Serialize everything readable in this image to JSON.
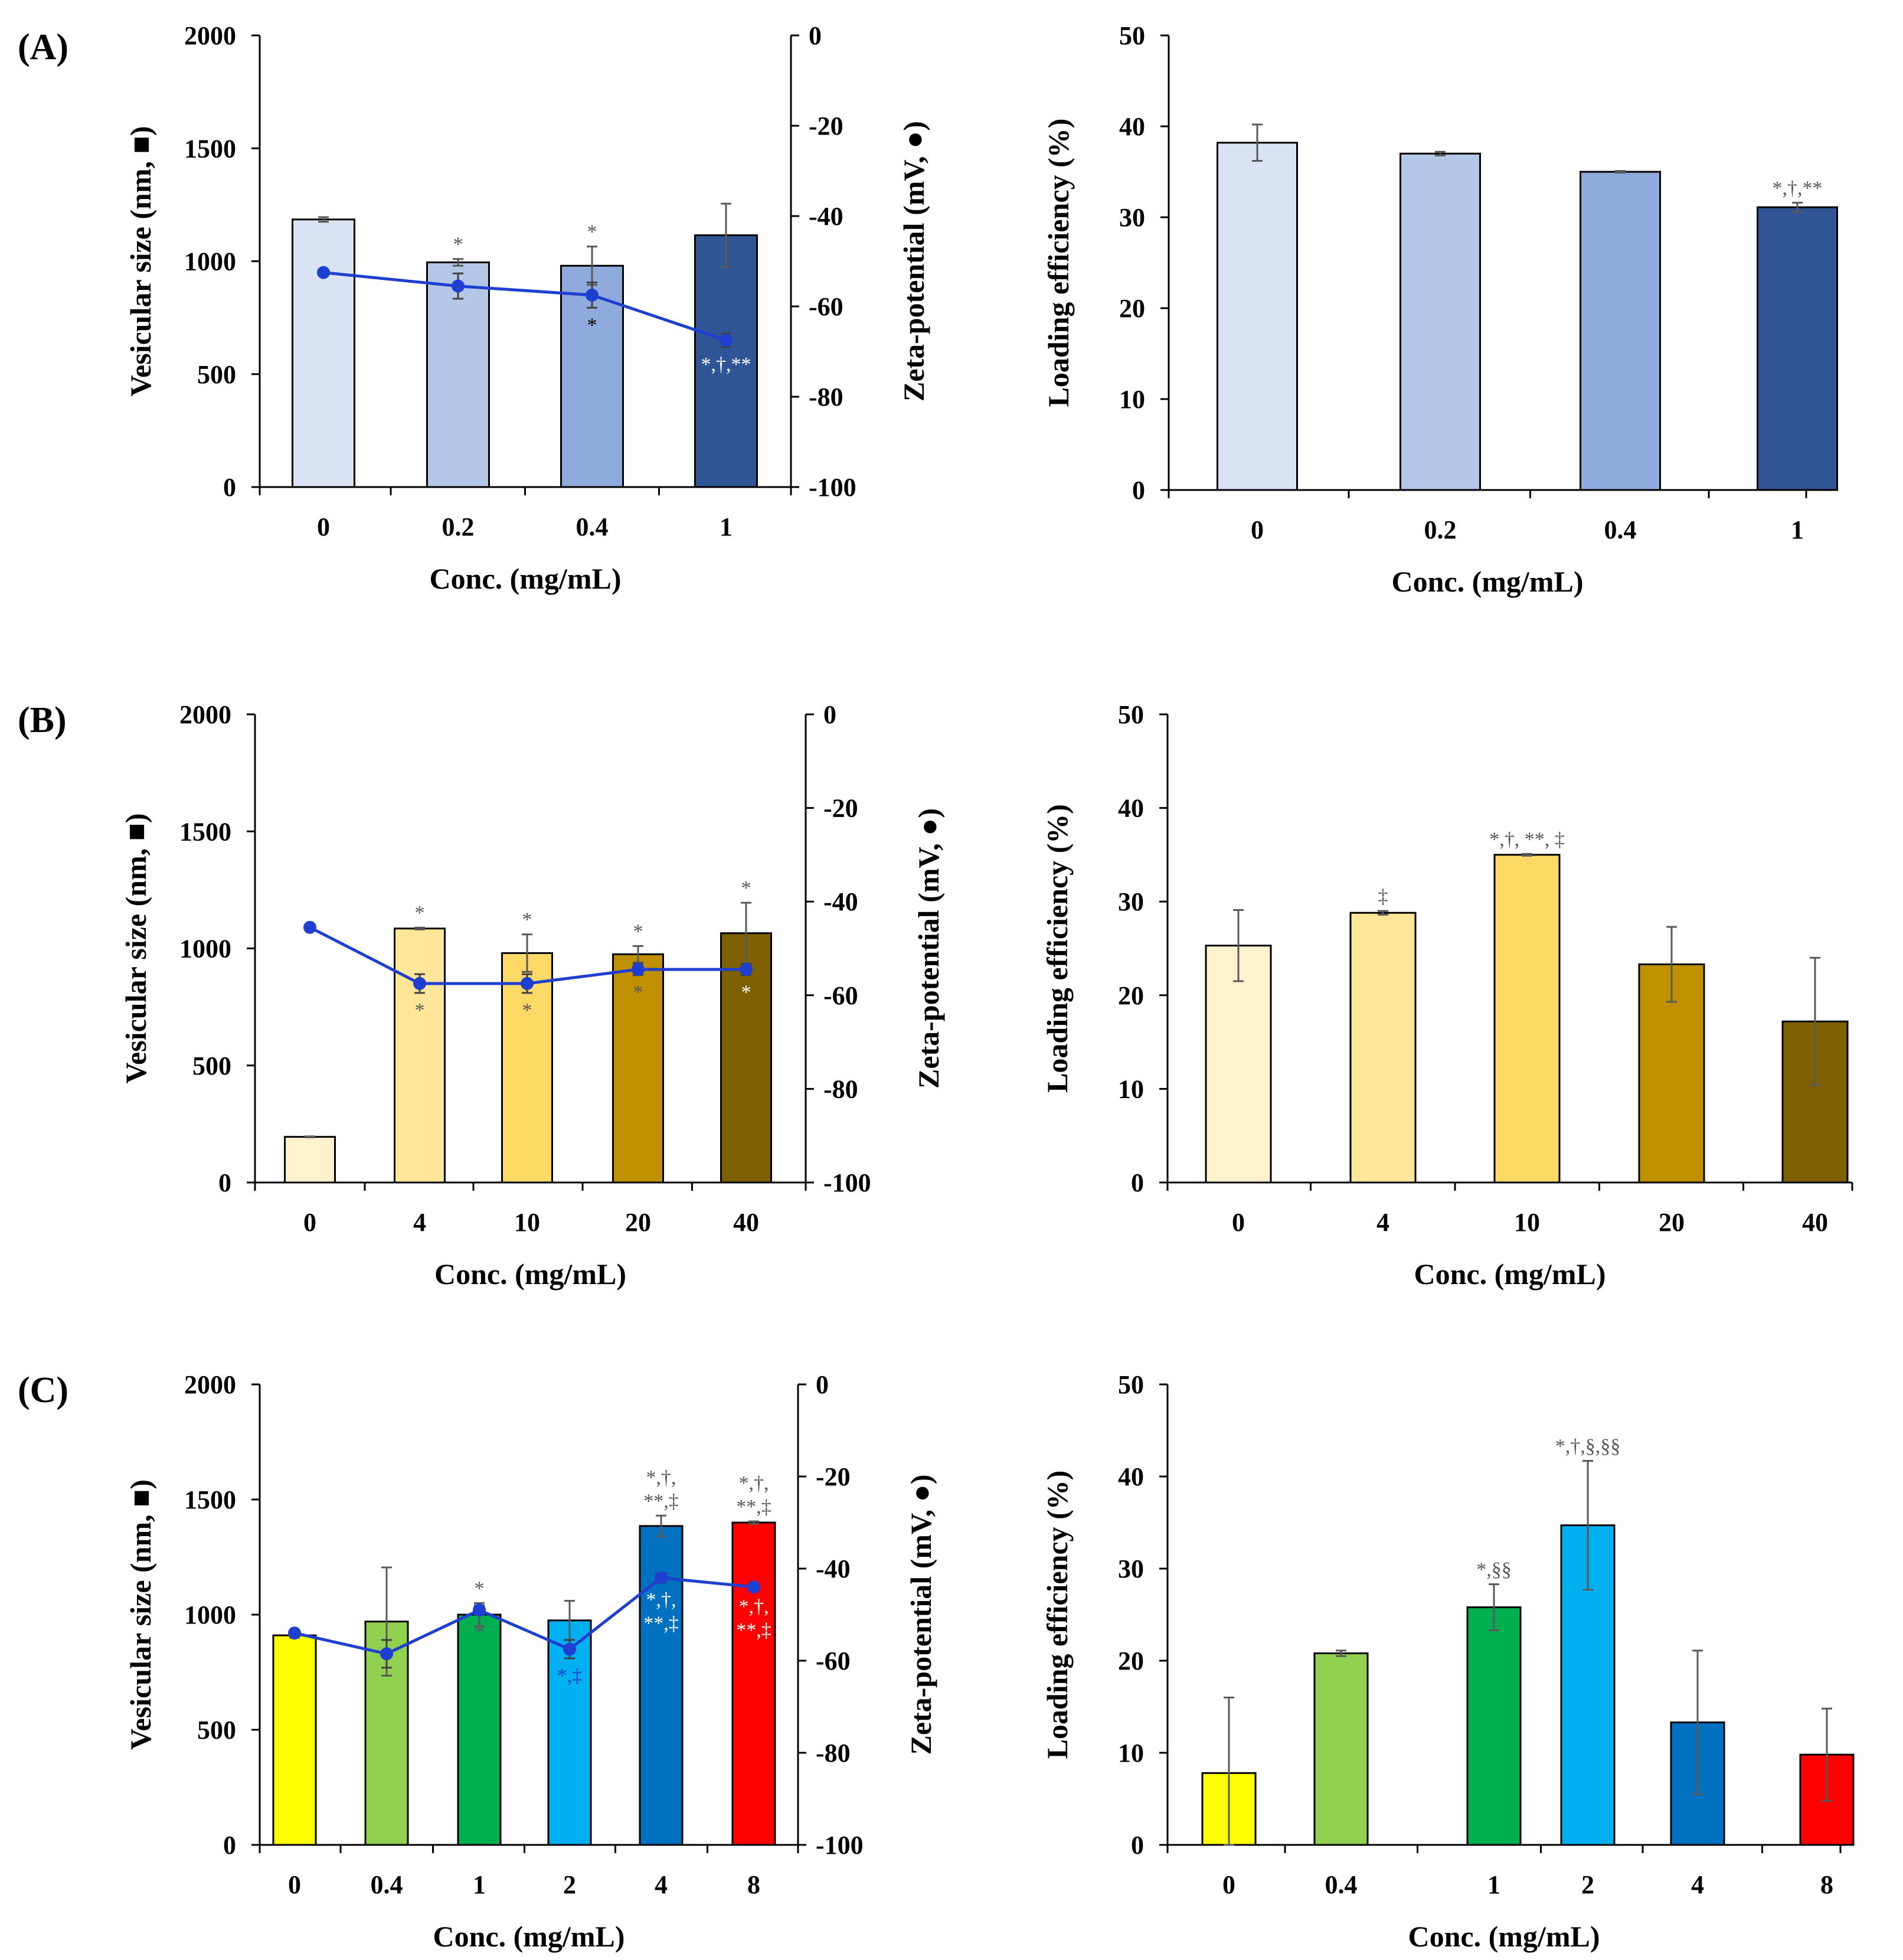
{
  "chart_data": [
    {
      "panel": "(A)",
      "type": "bar+line",
      "xlabel": "Conc. (mg/mL)",
      "ylabel": "Vesicular size (nm, ■)",
      "y2label": "Zeta-potential (mV, ●)",
      "ylim": [
        0,
        2000
      ],
      "yticks": [
        "0",
        "500",
        "1000",
        "1500",
        "2000"
      ],
      "y2lim": [
        -100,
        0
      ],
      "y2ticks": [
        "0",
        "-20",
        "-40",
        "-60",
        "-80",
        "-100"
      ],
      "categories": [
        "0",
        "0.2",
        "0.4",
        "1"
      ],
      "colors": [
        "#dae3f3",
        "#b4c7e7",
        "#8faadc",
        "#2f5597"
      ],
      "size_values": [
        1185,
        995,
        980,
        1115
      ],
      "size_errors": [
        10,
        15,
        85,
        140
      ],
      "size_annotations": [
        "",
        "*",
        "*",
        ""
      ],
      "size_annotation_color": "#595959",
      "zeta_values": [
        -52.5,
        -55.5,
        -57.5,
        -67.5
      ],
      "zeta_errors": [
        0.5,
        2.8,
        2.8,
        1.5
      ],
      "zeta_annotations": [
        "",
        "",
        "*",
        "*,†,**"
      ],
      "zeta_annotation_colors": [
        "#000000",
        "#000000",
        "#000000",
        "#ffffff"
      ],
      "line_color": "#1f3fd0"
    },
    {
      "panel": "(A)",
      "type": "bar",
      "xlabel": "Conc. (mg/mL)",
      "ylabel": "Loading efficiency  (%)",
      "ylim": [
        0,
        50
      ],
      "yticks": [
        "0",
        "10",
        "20",
        "30",
        "40",
        "50"
      ],
      "categories": [
        "0",
        "0.2",
        "0.4",
        "1"
      ],
      "colors": [
        "#dae3f3",
        "#b4c7e7",
        "#8faadc",
        "#2f5597"
      ],
      "values": [
        38.2,
        37.0,
        35.0,
        31.1
      ],
      "errors": [
        2.0,
        0.2,
        0.1,
        0.5
      ],
      "annotations": [
        "",
        "",
        "",
        "*,†,**"
      ],
      "annotation_color": "#595959"
    },
    {
      "panel": "(B)",
      "type": "bar+line",
      "xlabel": "Conc. (mg/mL)",
      "ylabel": "Vesicular size (nm, ■)",
      "y2label": "Zeta-potential (mV, ●)",
      "ylim": [
        0,
        2000
      ],
      "yticks": [
        "0",
        "500",
        "1000",
        "1500",
        "2000"
      ],
      "y2lim": [
        -100,
        0
      ],
      "y2ticks": [
        "0",
        "-20",
        "-40",
        "-60",
        "-80",
        "-100"
      ],
      "categories": [
        "0",
        "4",
        "10",
        "20",
        "40"
      ],
      "colors": [
        "#fff2cc",
        "#ffe699",
        "#ffd966",
        "#bf9000",
        "#7f6000"
      ],
      "size_values": [
        195,
        1085,
        980,
        975,
        1065
      ],
      "size_errors": [
        2,
        4,
        80,
        35,
        130
      ],
      "size_annotations": [
        "",
        "*",
        "*",
        "*",
        "*"
      ],
      "size_annotation_color": "#595959",
      "zeta_values": [
        -45.5,
        -57.5,
        -57.5,
        -54.5,
        -54.5
      ],
      "zeta_errors": [
        0.3,
        2.0,
        2.0,
        1.2,
        1.2
      ],
      "zeta_annotations": [
        "",
        "*",
        "*",
        "*",
        "*"
      ],
      "zeta_annotation_colors": [
        "#ffffff",
        "#595959",
        "#595959",
        "#595959",
        "#ffffff"
      ],
      "line_color": "#1f3fd0"
    },
    {
      "panel": "(B)",
      "type": "bar",
      "xlabel": "Conc. (mg/mL)",
      "ylabel": "Loading efficiency  (%)",
      "ylim": [
        0,
        50
      ],
      "yticks": [
        "0",
        "10",
        "20",
        "30",
        "40",
        "50"
      ],
      "categories": [
        "0",
        "4",
        "10",
        "20",
        "40"
      ],
      "colors": [
        "#fff2cc",
        "#ffe699",
        "#ffd966",
        "#bf9000",
        "#7f6000"
      ],
      "values": [
        25.3,
        28.8,
        35.0,
        23.3,
        17.2
      ],
      "errors": [
        3.8,
        0.2,
        0.1,
        4.0,
        6.8
      ],
      "annotations": [
        "",
        "‡",
        "*,†, **, ‡",
        "",
        ""
      ],
      "annotation_color": "#595959"
    },
    {
      "panel": "(C)",
      "type": "bar+line",
      "xlabel": "Conc. (mg/mL)",
      "ylabel": "Vesicular size (nm, ■)",
      "y2label": "Zeta-potential (mV, ●)",
      "ylim": [
        0,
        2000
      ],
      "yticks": [
        "0",
        "500",
        "1000",
        "1500",
        "2000"
      ],
      "y2lim": [
        -100,
        0
      ],
      "y2ticks": [
        "0",
        "-20",
        "-40",
        "-60",
        "-80",
        "-100"
      ],
      "categories": [
        "0",
        "0.4",
        "1",
        "2",
        "4",
        "8"
      ],
      "colors": [
        "#ffff00",
        "#92d050",
        "#00b050",
        "#00b0f0",
        "#0070c0",
        "#ff0000"
      ],
      "size_values": [
        910,
        970,
        1000,
        975,
        1385,
        1400
      ],
      "size_errors": [
        10,
        235,
        50,
        85,
        45,
        5
      ],
      "size_annotations": [
        "",
        "",
        "*",
        "",
        "*,†,|**,‡",
        "*,†,|**,‡"
      ],
      "size_annotation_color": "#595959",
      "zeta_values": [
        -54,
        -58.5,
        -49,
        -57.5,
        -42,
        -44
      ],
      "zeta_errors": [
        0.4,
        3.0,
        1.0,
        2.0,
        1.0,
        0.5
      ],
      "zeta_annotations": [
        "",
        "",
        "*",
        "*,‡",
        "*,†,|**,‡",
        "*,†,|**,‡"
      ],
      "zeta_annotation_colors": [
        "#595959",
        "#595959",
        "#595959",
        "#1f3fd0",
        "#ffffff",
        "#ffffff"
      ],
      "line_color": "#1f3fd0"
    },
    {
      "panel": "(C)",
      "type": "bar",
      "xlabel": "Conc. (mg/mL)",
      "ylabel": "Loading efficiency  (%)",
      "ylim": [
        0,
        50
      ],
      "yticks": [
        "0",
        "10",
        "20",
        "30",
        "40",
        "50"
      ],
      "categories": [
        "0",
        "0.4",
        "1",
        "2",
        "4",
        "8"
      ],
      "colors": [
        "#ffff00",
        "#92d050",
        "#00b050",
        "#00b0f0",
        "#0070c0",
        "#ff0000"
      ],
      "values": [
        7.8,
        20.8,
        25.8,
        34.7,
        13.3,
        9.8
      ],
      "errors": [
        8.2,
        0.3,
        2.5,
        7.0,
        7.8,
        5.0
      ],
      "annotations": [
        "",
        "",
        "*,§§",
        "*,†,§,§§",
        "",
        ""
      ],
      "annotation_color": "#595959"
    }
  ]
}
